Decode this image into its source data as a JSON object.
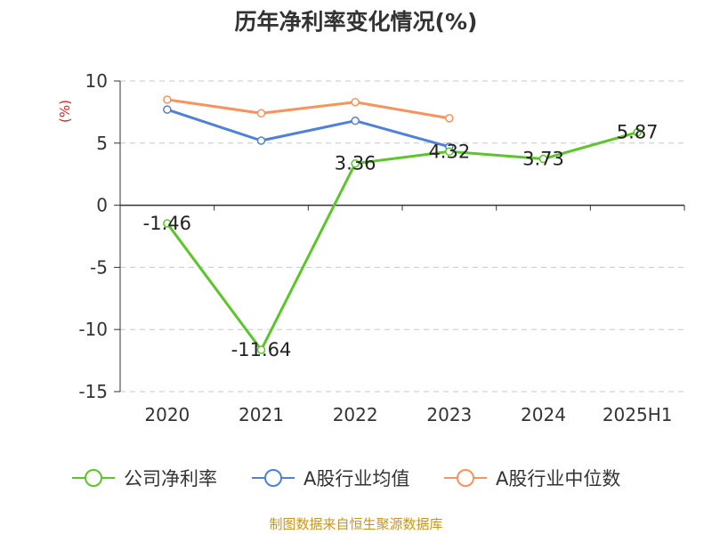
{
  "chart_data": {
    "type": "line",
    "title": "历年净利率变化情况(%)",
    "unit_label": "(%)",
    "categories": [
      "2020",
      "2021",
      "2022",
      "2023",
      "2024",
      "2025H1"
    ],
    "ylim": [
      -15,
      10
    ],
    "yticks": [
      10,
      5,
      0,
      -5,
      -10,
      -15
    ],
    "grid": true,
    "legend_position": "bottom",
    "series": [
      {
        "name": "公司净利率",
        "color": "#5cc52a",
        "values": [
          -1.46,
          -11.64,
          3.36,
          4.32,
          3.73,
          5.87
        ],
        "labels": [
          "-1.46",
          "-11.64",
          "3.36",
          "4.32",
          "3.73",
          "5.87"
        ]
      },
      {
        "name": "A股行业均值",
        "color": "#4f81db",
        "values": [
          7.7,
          5.2,
          6.8,
          4.7,
          null,
          null
        ]
      },
      {
        "name": "A股行业中位数",
        "color": "#f7935c",
        "values": [
          8.5,
          7.4,
          8.3,
          7.0,
          null,
          null
        ]
      }
    ],
    "source": "制图数据来自恒生聚源数据库"
  }
}
